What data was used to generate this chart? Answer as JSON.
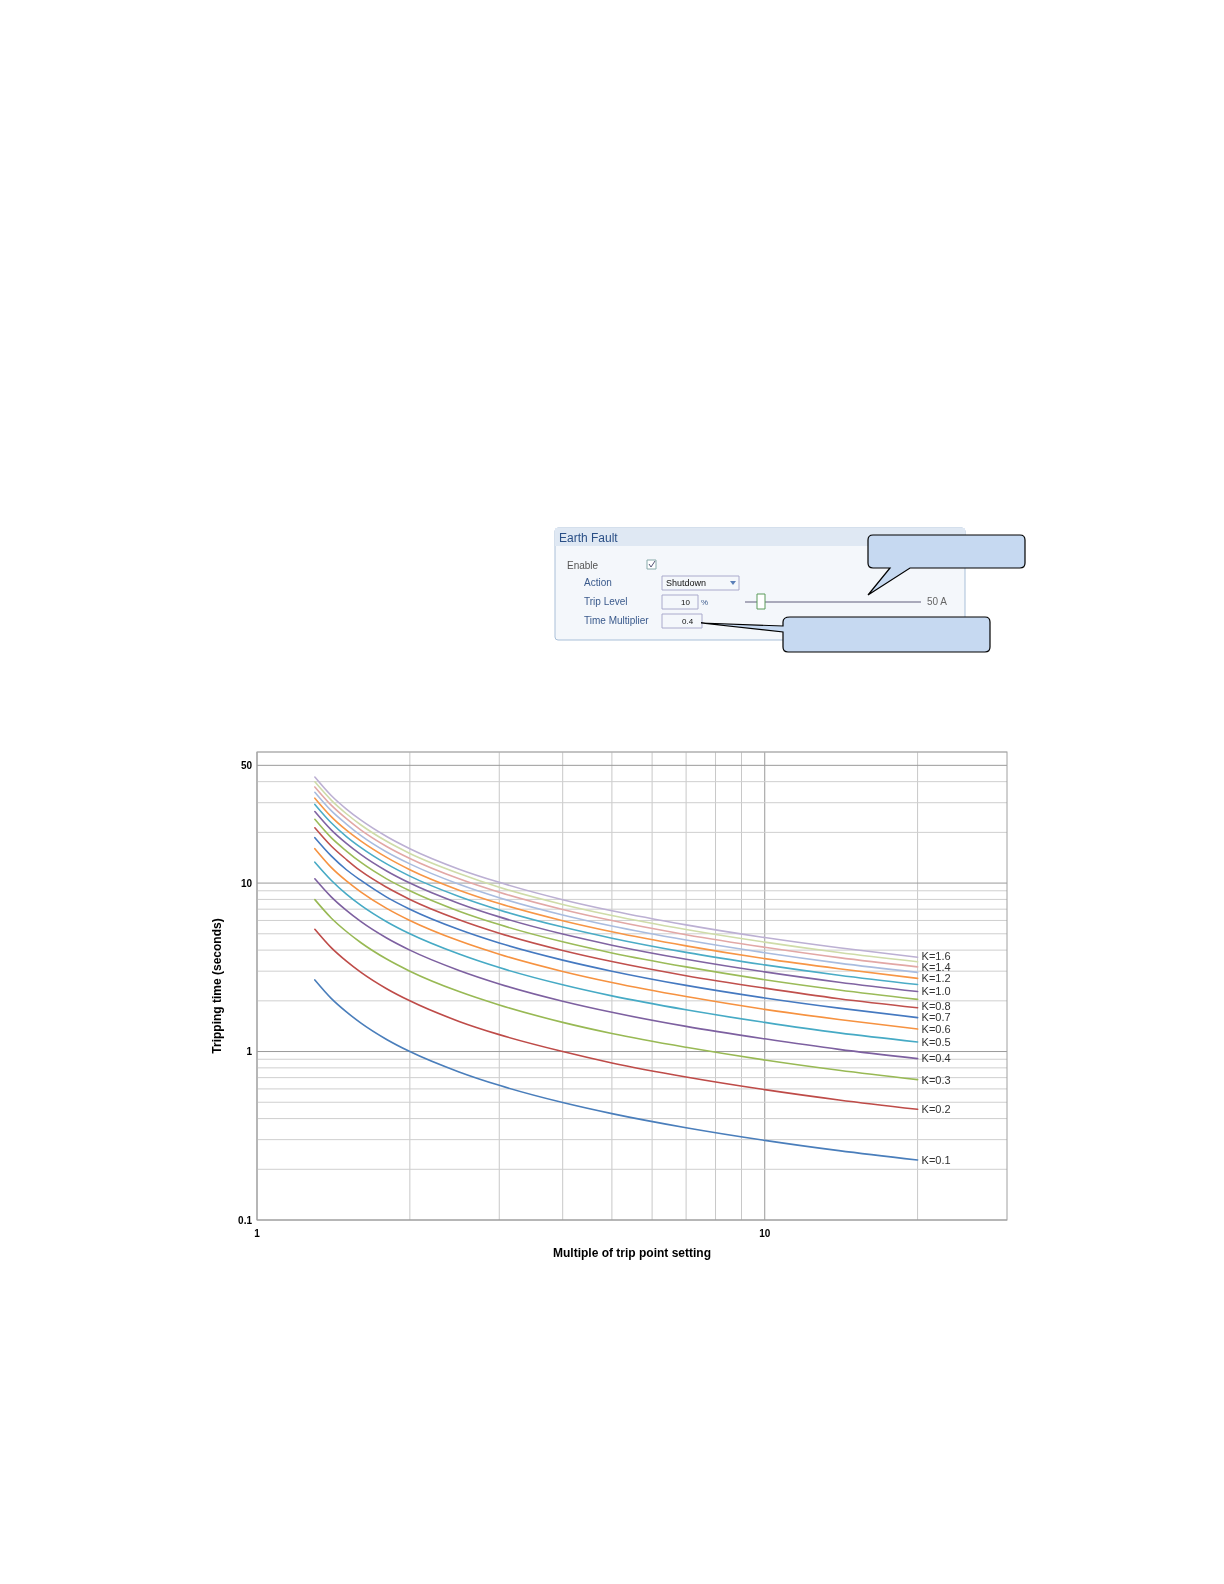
{
  "chart_data": [
    {
      "type": "other",
      "title": "Earth Fault",
      "annotations": [
        "Enable",
        "Action",
        "Shutdown",
        "Trip Level",
        "10",
        "%",
        "Time Multiplier",
        "0.4",
        "50 A"
      ]
    },
    {
      "type": "line",
      "xlabel": "Multiple of trip point setting",
      "ylabel": "Tripping time (seconds)",
      "log": "xy",
      "grid": true,
      "marker": "none",
      "line_style": "solid",
      "xlim": [
        1,
        30
      ],
      "ylim": [
        0.1,
        60
      ],
      "xticks": [
        1,
        {
          "value": 2,
          "label": null
        },
        {
          "value": 3,
          "label": null
        },
        {
          "value": 4,
          "label": null
        },
        {
          "value": 5,
          "label": null
        },
        {
          "value": 6,
          "label": null
        },
        {
          "value": 7,
          "label": null
        },
        {
          "value": 8,
          "label": null
        },
        {
          "value": 9,
          "label": null
        },
        10,
        {
          "value": 20,
          "label": null
        }
      ],
      "yticks": [
        0.1,
        {
          "value": 0.2,
          "label": null
        },
        {
          "value": 0.3,
          "label": null
        },
        {
          "value": 0.4,
          "label": null
        },
        {
          "value": 0.5,
          "label": null
        },
        {
          "value": 0.6,
          "label": null
        },
        {
          "value": 0.7,
          "label": null
        },
        {
          "value": 0.8,
          "label": null
        },
        {
          "value": 0.9,
          "label": null
        },
        1,
        {
          "value": 2,
          "label": null
        },
        {
          "value": 3,
          "label": null
        },
        {
          "value": 4,
          "label": null
        },
        {
          "value": 5,
          "label": null
        },
        {
          "value": 6,
          "label": null
        },
        {
          "value": 7,
          "label": null
        },
        {
          "value": 8,
          "label": null
        },
        {
          "value": 9,
          "label": null
        },
        10,
        {
          "value": 20,
          "label": null
        },
        {
          "value": 30,
          "label": null
        },
        {
          "value": 40,
          "label": null
        },
        50,
        {
          "value": 60,
          "label": null
        }
      ],
      "x": [
        1.3,
        1.4,
        1.5,
        1.6,
        1.8,
        2,
        2.5,
        3,
        4,
        5,
        7,
        10,
        14,
        20
      ],
      "series": [
        {
          "name": "K=0.1",
          "color": "#4a7ebb",
          "values": [
            2.66,
            2.07,
            1.72,
            1.48,
            1.18,
            1.0,
            0.757,
            0.63,
            0.498,
            0.428,
            0.353,
            0.297,
            0.258,
            0.227
          ]
        },
        {
          "name": "K=0.2",
          "color": "#be4b48",
          "values": [
            5.32,
            4.14,
            3.44,
            2.96,
            2.36,
            2.0,
            1.51,
            1.26,
            1.0,
            0.856,
            0.706,
            0.594,
            0.516,
            0.454
          ]
        },
        {
          "name": "K=0.3",
          "color": "#98b954",
          "values": [
            7.98,
            6.21,
            5.16,
            4.44,
            3.54,
            3.0,
            2.27,
            1.89,
            1.49,
            1.28,
            1.06,
            0.891,
            0.774,
            0.681
          ]
        },
        {
          "name": "K=0.4",
          "color": "#7d60a0",
          "values": [
            10.6,
            8.28,
            6.88,
            5.92,
            4.72,
            4.0,
            3.03,
            2.52,
            1.99,
            1.71,
            1.41,
            1.19,
            1.03,
            0.908
          ]
        },
        {
          "name": "K=0.5",
          "color": "#46aac5",
          "values": [
            13.3,
            10.4,
            8.6,
            7.4,
            5.9,
            5.0,
            3.79,
            3.15,
            2.49,
            2.14,
            1.77,
            1.49,
            1.29,
            1.14
          ]
        },
        {
          "name": "K=0.6",
          "color": "#f69240",
          "values": [
            16.0,
            12.4,
            10.3,
            8.88,
            7.08,
            6.0,
            4.54,
            3.78,
            2.99,
            2.57,
            2.12,
            1.78,
            1.55,
            1.36
          ]
        },
        {
          "name": "K=0.7",
          "color": "#4579c0",
          "values": [
            18.6,
            14.5,
            12.0,
            10.4,
            8.26,
            7.0,
            5.3,
            4.41,
            3.49,
            3.0,
            2.47,
            2.08,
            1.81,
            1.59
          ]
        },
        {
          "name": "K=0.8",
          "color": "#c0504d",
          "values": [
            21.3,
            16.6,
            13.8,
            11.8,
            9.44,
            8.0,
            6.06,
            5.04,
            3.98,
            3.42,
            2.82,
            2.38,
            2.06,
            1.82
          ]
        },
        {
          "color": "#9bbb59",
          "values": [
            23.9,
            18.6,
            15.5,
            13.3,
            10.6,
            9.0,
            6.81,
            5.67,
            4.48,
            3.85,
            3.18,
            2.67,
            2.32,
            2.04
          ]
        },
        {
          "name": "K=1.0",
          "color": "#8064a2",
          "values": [
            26.6,
            20.7,
            17.2,
            14.8,
            11.8,
            10.0,
            7.57,
            6.3,
            4.98,
            4.28,
            3.53,
            2.97,
            2.58,
            2.27
          ]
        },
        {
          "color": "#4bacc6",
          "values": [
            29.3,
            22.8,
            18.9,
            16.3,
            13.0,
            11.0,
            8.33,
            6.93,
            5.48,
            4.71,
            3.88,
            3.27,
            2.84,
            2.5
          ]
        },
        {
          "name": "K=1.2",
          "color": "#f79646",
          "values": [
            31.9,
            24.8,
            20.6,
            17.8,
            14.2,
            12.0,
            9.08,
            7.56,
            5.98,
            5.14,
            4.24,
            3.56,
            3.1,
            2.72
          ]
        },
        {
          "color": "#a9bcdf",
          "values": [
            34.6,
            26.9,
            22.4,
            19.2,
            15.3,
            13.0,
            9.84,
            8.19,
            6.47,
            5.56,
            4.59,
            3.86,
            3.35,
            2.95
          ]
        },
        {
          "name": "K=1.4",
          "color": "#e2a8a6",
          "values": [
            37.2,
            29.0,
            24.1,
            20.7,
            16.5,
            14.0,
            10.6,
            8.82,
            6.97,
            5.99,
            4.94,
            4.16,
            3.61,
            3.18
          ]
        },
        {
          "color": "#cfdca9",
          "values": [
            39.9,
            31.1,
            25.8,
            22.2,
            17.7,
            15.0,
            11.4,
            9.45,
            7.47,
            6.42,
            5.3,
            4.46,
            3.87,
            3.41
          ]
        },
        {
          "name": "K=1.6",
          "color": "#bcb0d3",
          "values": [
            42.6,
            33.1,
            27.5,
            23.7,
            18.9,
            16.0,
            12.1,
            10.1,
            7.97,
            6.85,
            5.65,
            4.75,
            4.13,
            3.63
          ]
        }
      ]
    }
  ]
}
